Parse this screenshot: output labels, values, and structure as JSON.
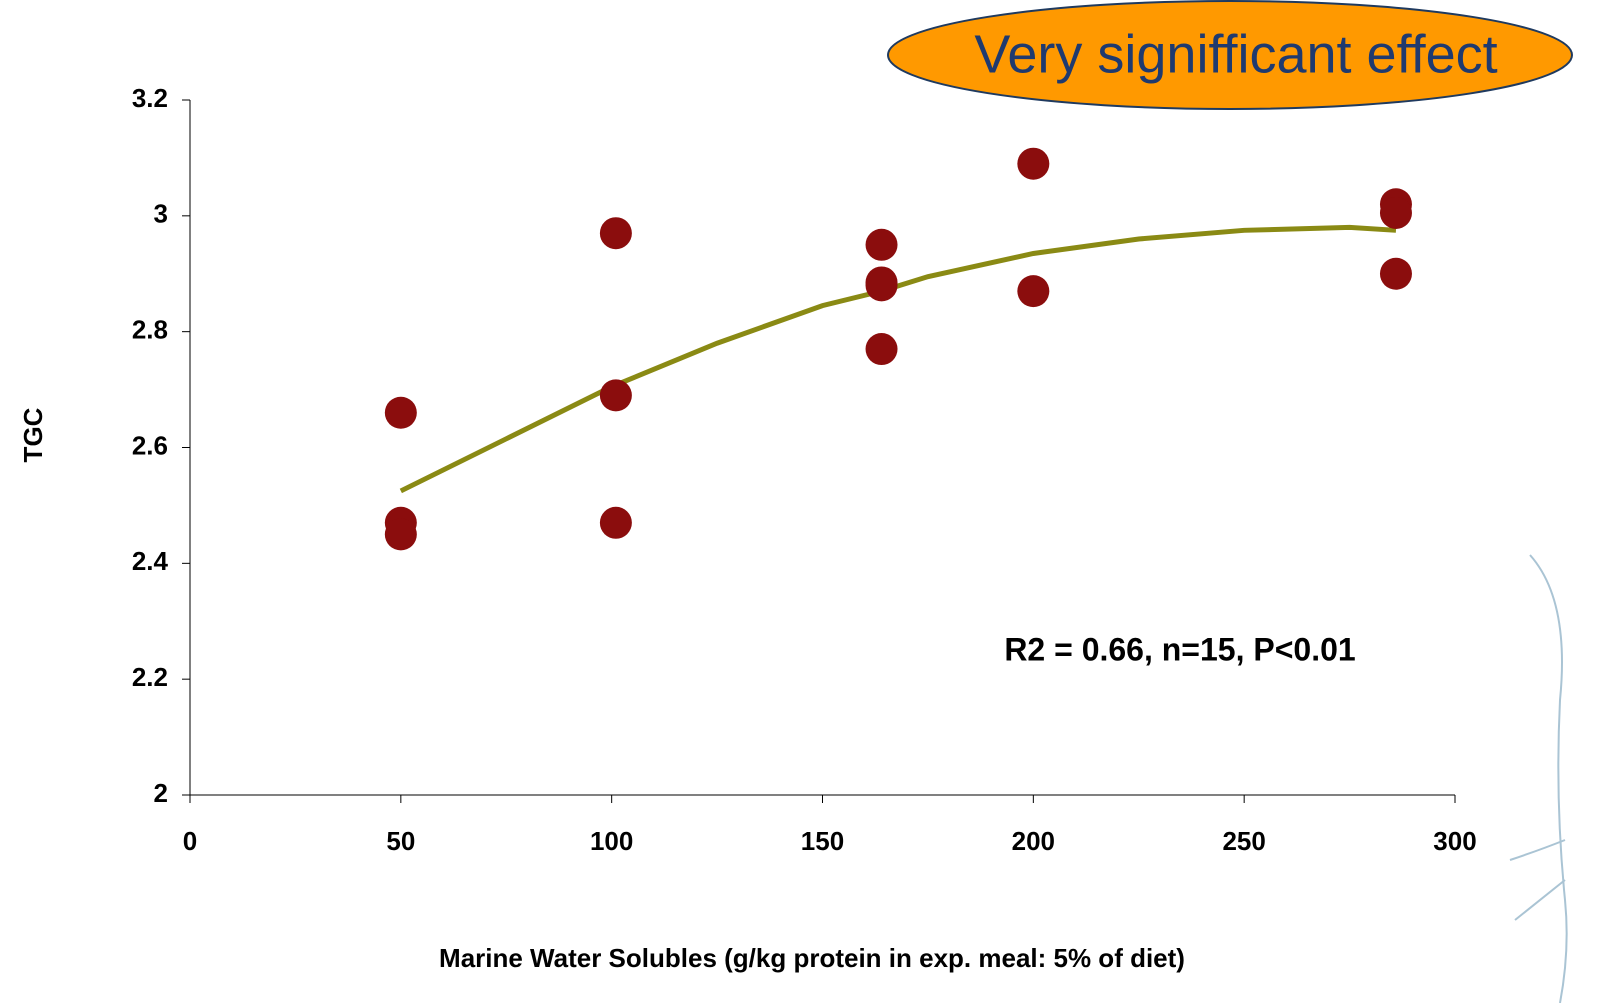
{
  "chart_data": {
    "type": "scatter",
    "x_label": "Marine Water Solubles (g/kg protein in exp. meal: 5% of diet)",
    "y_label": "TGC",
    "points": {
      "color": "#8b0d0d",
      "x": [
        50,
        50,
        50,
        101,
        101,
        101,
        164,
        164,
        164,
        164,
        200,
        200,
        286,
        286,
        286
      ],
      "y": [
        2.66,
        2.47,
        2.45,
        2.97,
        2.69,
        2.47,
        2.95,
        2.885,
        2.88,
        2.77,
        3.09,
        2.87,
        3.02,
        3.005,
        2.9
      ]
    },
    "trend": {
      "color": "#8a8a14",
      "x": [
        50,
        75,
        100,
        125,
        150,
        164,
        175,
        200,
        225,
        250,
        275,
        286
      ],
      "y": [
        2.525,
        2.615,
        2.705,
        2.78,
        2.845,
        2.87,
        2.895,
        2.935,
        2.96,
        2.975,
        2.98,
        2.975
      ]
    },
    "xlim": [
      0,
      300
    ],
    "xticks": [
      0,
      50,
      100,
      150,
      200,
      250,
      300
    ],
    "ylim": [
      2,
      3.2
    ],
    "yticks": [
      2,
      2.2,
      2.4,
      2.6,
      2.8,
      3,
      3.2
    ],
    "annotations": [
      "Very signifficant effect",
      "R2 = 0.66, n=15, P<0.01"
    ]
  }
}
